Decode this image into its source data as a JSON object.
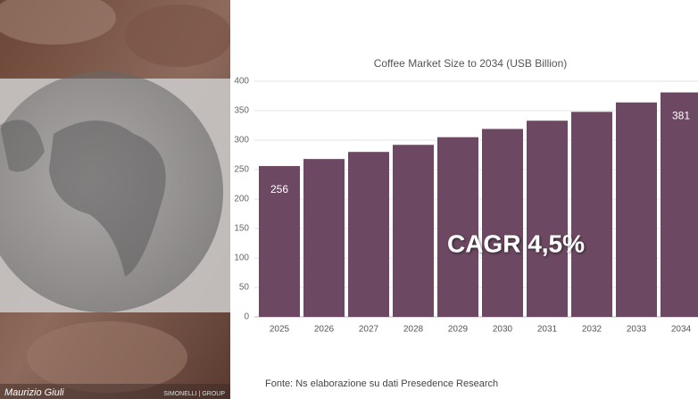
{
  "chart_data": {
    "type": "bar",
    "title": "Coffee Market Size to 2034 (USB Billion)",
    "categories": [
      "2025",
      "2026",
      "2027",
      "2028",
      "2029",
      "2030",
      "2031",
      "2032",
      "2033",
      "2034"
    ],
    "values": [
      256,
      268,
      280,
      292,
      305,
      319,
      333,
      348,
      364,
      381
    ],
    "value_labels": [
      "256",
      null,
      null,
      null,
      null,
      null,
      null,
      null,
      null,
      "381"
    ],
    "color": "#6d4862",
    "ylim": [
      0,
      400
    ],
    "yticks": [
      0,
      50,
      100,
      150,
      200,
      250,
      300,
      350,
      400
    ],
    "grid": true,
    "annotation": "CAGR 4,5%"
  },
  "source": "Fonte: Ns elaborazione su dati Presedence Research",
  "author": "Maurizio Giuli",
  "brand": "SIMONELLI | GROUP"
}
